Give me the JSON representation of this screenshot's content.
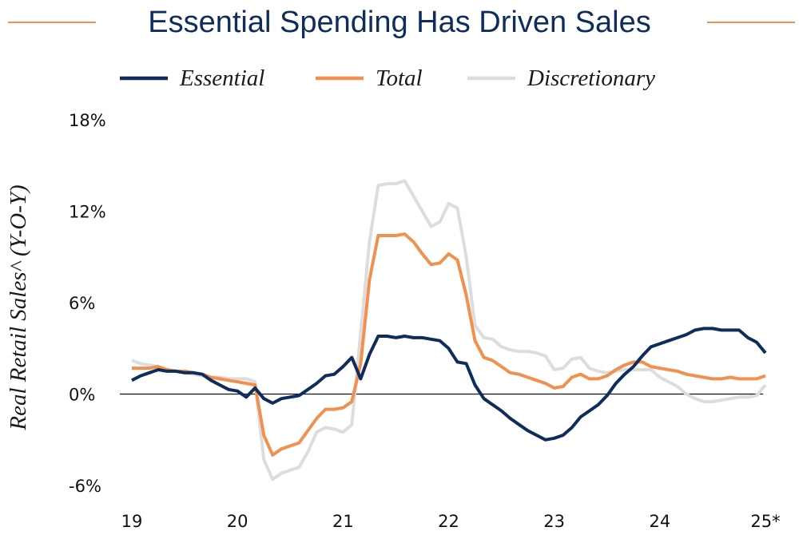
{
  "chart_data": {
    "type": "line",
    "title": "Essential Spending Has Driven Sales",
    "y_label": "Real Retail Sales^ (Y-O-Y)",
    "categories": [
      "19",
      null,
      null,
      null,
      null,
      null,
      null,
      null,
      null,
      null,
      null,
      null,
      "20",
      null,
      null,
      null,
      null,
      null,
      null,
      null,
      null,
      null,
      null,
      null,
      "21",
      null,
      null,
      null,
      null,
      null,
      null,
      null,
      null,
      null,
      null,
      null,
      "22",
      null,
      null,
      null,
      null,
      null,
      null,
      null,
      null,
      null,
      null,
      null,
      "23",
      null,
      null,
      null,
      null,
      null,
      null,
      null,
      null,
      null,
      null,
      null,
      "24",
      null,
      null,
      null,
      null,
      null,
      null,
      null,
      null,
      null,
      null,
      null,
      "25*"
    ],
    "series": [
      {
        "name": "Discretionary",
        "color": "#dcdddc",
        "values": [
          2.2,
          2.0,
          1.9,
          1.8,
          1.6,
          1.5,
          1.4,
          1.3,
          1.2,
          1.1,
          1.1,
          1.0,
          1.0,
          1.0,
          0.8,
          -4.3,
          -5.6,
          -5.2,
          -5.0,
          -4.8,
          -3.8,
          -2.5,
          -2.2,
          -2.3,
          -2.5,
          -2.0,
          4.0,
          10.0,
          13.7,
          13.8,
          13.8,
          14.0,
          13.0,
          12.0,
          11.0,
          11.3,
          12.5,
          12.2,
          9.0,
          4.5,
          3.7,
          3.6,
          3.1,
          2.9,
          2.8,
          2.8,
          2.7,
          2.5,
          1.6,
          1.7,
          2.3,
          2.4,
          1.7,
          1.5,
          1.4,
          1.5,
          1.6,
          1.6,
          1.6,
          1.6,
          1.1,
          0.8,
          0.5,
          0.0,
          -0.3,
          -0.5,
          -0.5,
          -0.4,
          -0.3,
          -0.2,
          -0.2,
          -0.1,
          0.6
        ]
      },
      {
        "name": "Total",
        "color": "#f0914f",
        "values": [
          1.7,
          1.7,
          1.7,
          1.8,
          1.6,
          1.5,
          1.5,
          1.4,
          1.3,
          1.1,
          1.0,
          0.9,
          0.8,
          0.7,
          0.6,
          -2.7,
          -4.0,
          -3.6,
          -3.4,
          -3.2,
          -2.4,
          -1.6,
          -1.0,
          -1.0,
          -0.9,
          -0.5,
          2.0,
          7.5,
          10.4,
          10.4,
          10.4,
          10.5,
          10.0,
          9.2,
          8.5,
          8.6,
          9.2,
          8.8,
          6.5,
          3.5,
          2.4,
          2.2,
          1.8,
          1.4,
          1.3,
          1.1,
          0.9,
          0.7,
          0.4,
          0.5,
          1.1,
          1.3,
          1.0,
          1.0,
          1.2,
          1.6,
          1.9,
          2.1,
          2.1,
          1.8,
          1.7,
          1.6,
          1.5,
          1.3,
          1.2,
          1.1,
          1.0,
          1.0,
          1.1,
          1.0,
          1.0,
          1.0,
          1.2
        ]
      },
      {
        "name": "Essential",
        "color": "#0f2d5c",
        "values": [
          0.9,
          1.2,
          1.4,
          1.6,
          1.5,
          1.5,
          1.4,
          1.4,
          1.3,
          0.9,
          0.6,
          0.3,
          0.2,
          -0.2,
          0.4,
          -0.3,
          -0.6,
          -0.3,
          -0.2,
          -0.1,
          0.3,
          0.7,
          1.2,
          1.3,
          1.8,
          2.4,
          1.0,
          2.6,
          3.8,
          3.8,
          3.7,
          3.8,
          3.7,
          3.7,
          3.6,
          3.5,
          3.0,
          2.1,
          2.0,
          0.6,
          -0.3,
          -0.7,
          -1.1,
          -1.6,
          -2.0,
          -2.4,
          -2.7,
          -3.0,
          -2.9,
          -2.7,
          -2.2,
          -1.5,
          -1.1,
          -0.7,
          -0.1,
          0.7,
          1.3,
          1.8,
          2.5,
          3.1,
          3.3,
          3.5,
          3.7,
          3.9,
          4.2,
          4.3,
          4.3,
          4.2,
          4.2,
          4.2,
          3.7,
          3.4,
          2.7
        ]
      }
    ],
    "legend_order": [
      "Essential",
      "Total",
      "Discretionary"
    ],
    "ylim": [
      -6,
      18
    ],
    "yticks": [
      {
        "value": -6,
        "label": "-6%"
      },
      {
        "value": 0,
        "label": "0%"
      },
      {
        "value": 6,
        "label": "6%"
      },
      {
        "value": 12,
        "label": "12%"
      },
      {
        "value": 18,
        "label": "18%"
      }
    ],
    "grid": false
  }
}
